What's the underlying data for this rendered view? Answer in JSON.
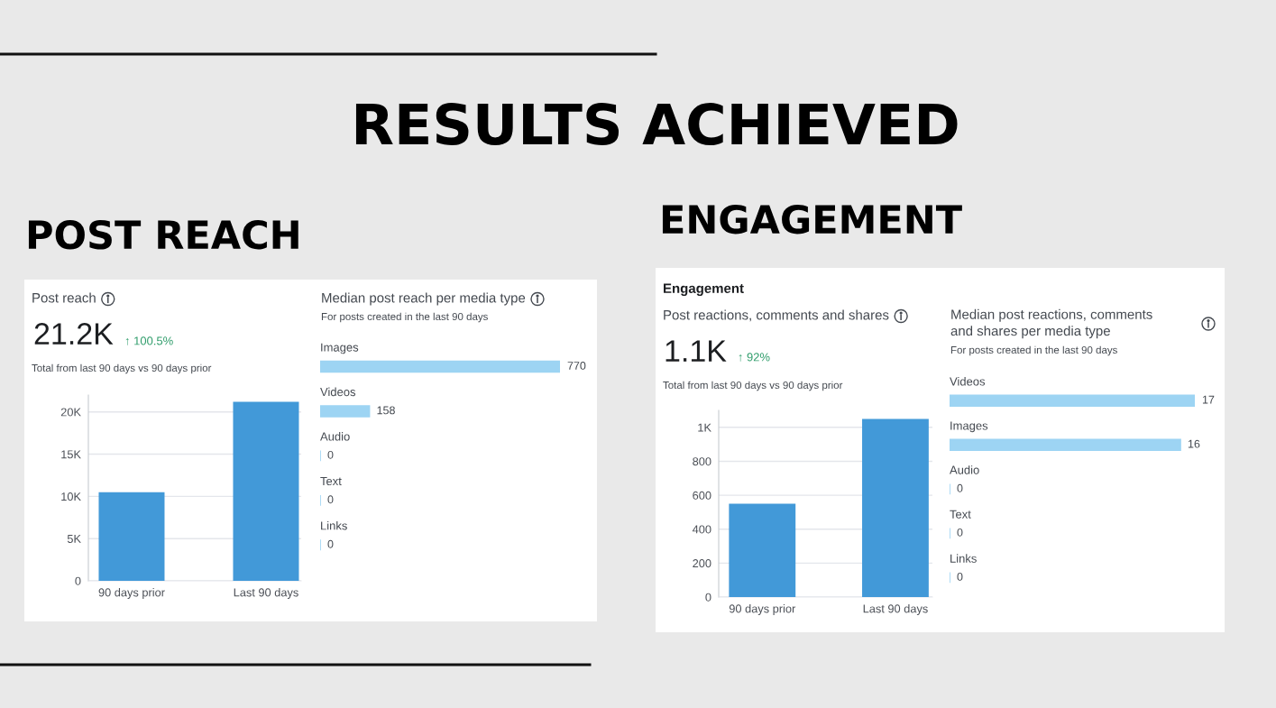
{
  "chart_data": [
    {
      "type": "bar",
      "title": "Post reach",
      "subtitle": "Total from last 90 days vs 90 days prior",
      "annotations": [
        "RESULTS ACHIEVED",
        "POST REACH",
        "21.2K",
        "↑ 100.5%"
      ],
      "categories": [
        "90 days prior",
        "Last 90 days"
      ],
      "values": [
        10500,
        21200
      ],
      "color": "#4299d8",
      "ylim": [
        0,
        22000
      ],
      "yticks": [
        0,
        {
          "value": 5000,
          "label": "5K"
        },
        {
          "value": 10000,
          "label": "10K"
        },
        {
          "value": 15000,
          "label": "15K"
        },
        {
          "value": 20000,
          "label": "20K"
        }
      ],
      "grid": "y"
    },
    {
      "type": "bar",
      "orientation": "horizontal",
      "title": "Median post reach per media type",
      "subtitle": "For posts created in the last 90 days",
      "categories": [
        "Images",
        "Videos",
        "Audio",
        "Text",
        "Links"
      ],
      "values": [
        770,
        158,
        0,
        0,
        0
      ],
      "color": "#9dd4f3",
      "data_labels": true
    },
    {
      "type": "bar",
      "title": "Post reactions, comments and shares",
      "subtitle": "Total from last 90 days vs 90 days prior",
      "annotations": [
        "ENGAGEMENT",
        "Engagement",
        "1.1K",
        "↑ 92%"
      ],
      "categories": [
        "90 days prior",
        "Last 90 days"
      ],
      "values": [
        550,
        1050
      ],
      "color": "#4299d8",
      "ylim": [
        0,
        1100
      ],
      "yticks": [
        0,
        200,
        400,
        600,
        800,
        {
          "value": 1000,
          "label": "1K"
        }
      ],
      "grid": "y"
    },
    {
      "type": "bar",
      "orientation": "horizontal",
      "title": "Median post reactions, comments\nand shares per media type",
      "subtitle": "For posts created in the last 90 days",
      "categories": [
        "Videos",
        "Images",
        "Audio",
        "Text",
        "Links"
      ],
      "values": [
        17,
        16,
        0,
        0,
        0
      ],
      "color": "#9dd4f3",
      "data_labels": true
    }
  ]
}
